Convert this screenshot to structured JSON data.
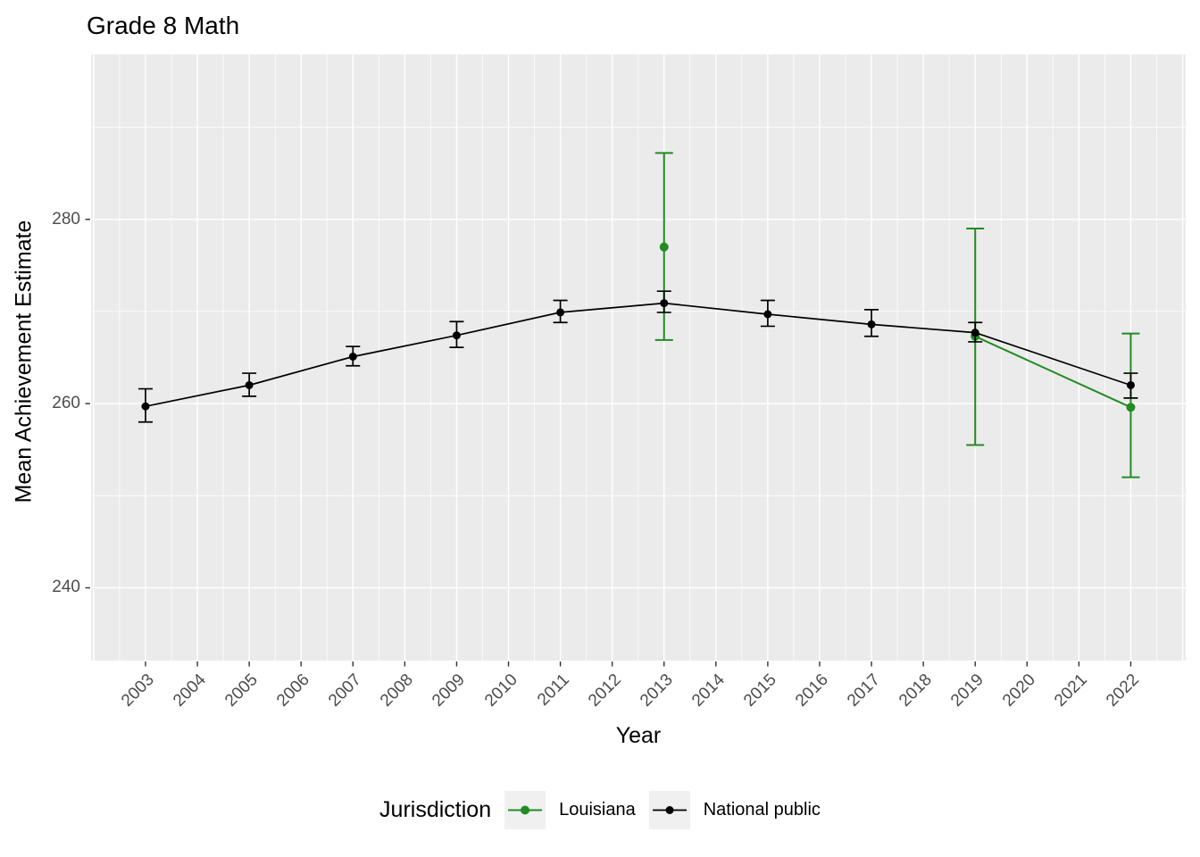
{
  "title": "Grade 8 Math",
  "legend": {
    "title": "Jurisdiction",
    "items": [
      {
        "label": "Louisiana",
        "color": "#228B22"
      },
      {
        "label": "National public",
        "color": "#000000"
      }
    ]
  },
  "colors": {
    "panel_background": "#EBEBEB",
    "grid_line": "#FFFFFF",
    "axis_text": "#4D4D4D",
    "tick_mark": "#333333",
    "legend_key_background": "#F0F0F0",
    "louisiana_green": "#228B22",
    "national_black": "#000000"
  },
  "chart_data": {
    "type": "line",
    "title": "Grade 8 Math",
    "xlabel": "Year",
    "ylabel": "Mean Achievement Estimate",
    "x_ticks": [
      2003,
      2004,
      2005,
      2006,
      2007,
      2008,
      2009,
      2010,
      2011,
      2012,
      2013,
      2014,
      2015,
      2016,
      2017,
      2018,
      2019,
      2020,
      2021,
      2022
    ],
    "y_ticks": [
      240,
      260,
      280
    ],
    "y_minor_ticks": [
      250,
      270,
      290
    ],
    "xlim": [
      2001.95,
      2023.06
    ],
    "ylim": [
      232.1,
      297.9
    ],
    "grid": true,
    "legend_position": "bottom",
    "error_bars": "95% interval shown as vertical bars with caps",
    "series": [
      {
        "name": "Louisiana",
        "color": "#228B22",
        "line_years": [
          2019,
          2022
        ],
        "points": [
          {
            "year": 2013,
            "value": 277.0,
            "lo": 266.9,
            "hi": 287.2
          },
          {
            "year": 2019,
            "value": 267.3,
            "lo": 255.5,
            "hi": 279.0
          },
          {
            "year": 2022,
            "value": 259.6,
            "lo": 252.0,
            "hi": 267.6
          }
        ]
      },
      {
        "name": "National public",
        "color": "#000000",
        "line_years": [
          2003,
          2005,
          2007,
          2009,
          2011,
          2013,
          2015,
          2017,
          2019,
          2022
        ],
        "points": [
          {
            "year": 2003,
            "value": 259.7,
            "lo": 258.0,
            "hi": 261.6
          },
          {
            "year": 2005,
            "value": 262.0,
            "lo": 260.8,
            "hi": 263.3
          },
          {
            "year": 2007,
            "value": 265.1,
            "lo": 264.1,
            "hi": 266.2
          },
          {
            "year": 2009,
            "value": 267.4,
            "lo": 266.1,
            "hi": 268.9
          },
          {
            "year": 2011,
            "value": 269.9,
            "lo": 268.8,
            "hi": 271.2
          },
          {
            "year": 2013,
            "value": 270.9,
            "lo": 269.9,
            "hi": 272.2
          },
          {
            "year": 2015,
            "value": 269.7,
            "lo": 268.4,
            "hi": 271.2
          },
          {
            "year": 2017,
            "value": 268.6,
            "lo": 267.3,
            "hi": 270.2
          },
          {
            "year": 2019,
            "value": 267.7,
            "lo": 266.7,
            "hi": 268.8
          },
          {
            "year": 2022,
            "value": 262.0,
            "lo": 260.6,
            "hi": 263.3
          }
        ]
      }
    ]
  }
}
